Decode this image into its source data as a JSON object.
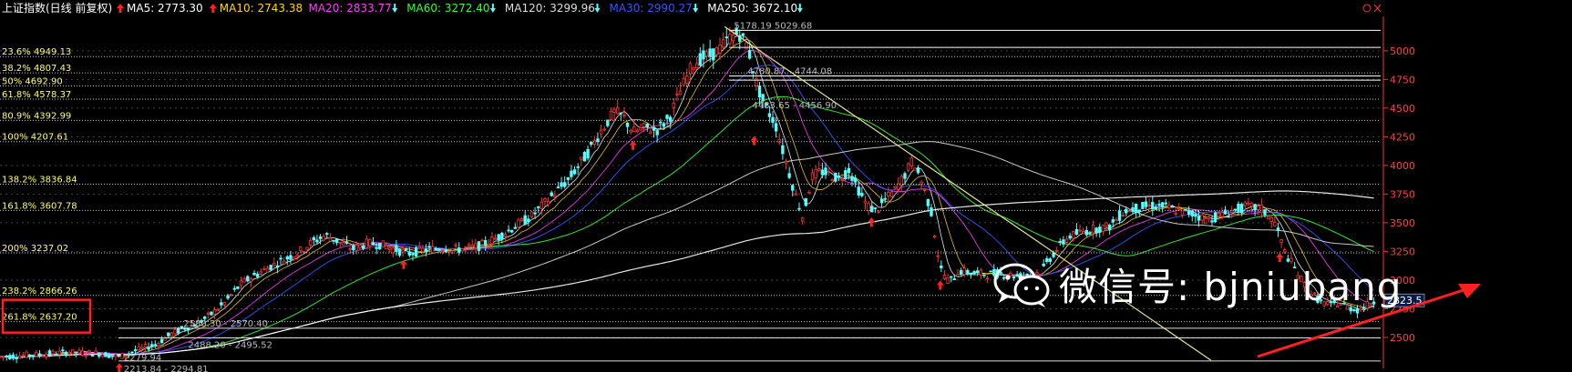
{
  "header": {
    "title": "上证指数(日线 前复权)",
    "ma": [
      {
        "text": "MA5: 2773.30",
        "arrow": "up",
        "color": "#ffffff"
      },
      {
        "text": "MA10: 2743.38",
        "arrow": "up",
        "color": "#ffd700"
      },
      {
        "text": "MA20: 2833.77",
        "arrow": "down",
        "color": "#ff3cff"
      },
      {
        "text": "MA60: 3272.40",
        "arrow": "down",
        "color": "#33ff33"
      },
      {
        "text": "MA120: 3299.96",
        "arrow": "down",
        "color": "#dddddd"
      },
      {
        "text": "MA30: 2990.27",
        "arrow": "down",
        "color": "#3355ff"
      },
      {
        "text": "MA250: 3672.10",
        "arrow": "down",
        "color": "#ffffff"
      }
    ]
  },
  "watermark": {
    "text": "微信号: bjniubang",
    "icon": "wechat-icon"
  },
  "colors": {
    "up": "#ff3232",
    "down": "#54ffff",
    "fib": "#ffff66",
    "grid": "#aaaaaa",
    "trend": "#e6e68c",
    "highlight": "#ff2020"
  },
  "chart_data": {
    "type": "candlestick",
    "series_name": "上证指数",
    "ylim": [
      2230,
      5300
    ],
    "y_ticks": [
      {
        "value": 5000,
        "label": "5000"
      },
      {
        "value": 4750,
        "label": "4750"
      },
      {
        "value": 4500,
        "label": "4500"
      },
      {
        "value": 4250,
        "label": "4250"
      },
      {
        "value": 4000,
        "label": "4000"
      },
      {
        "value": 3750,
        "label": "3750"
      },
      {
        "value": 3500,
        "label": "3500"
      },
      {
        "value": 3250,
        "label": "3250"
      },
      {
        "value": 3000,
        "label": "3000"
      },
      {
        "value": 2750,
        "label": "2750"
      },
      {
        "value": 2500,
        "label": "2500"
      }
    ],
    "current_price": {
      "value": 2823.5,
      "label": "2823.5"
    },
    "fib_levels": [
      {
        "label": "23.6% 4949.13",
        "value": 4949.13
      },
      {
        "label": "38.2% 4807.43",
        "value": 4807.43
      },
      {
        "label": "50% 4692.90",
        "value": 4692.9
      },
      {
        "label": "61.8% 4578.37",
        "value": 4578.37
      },
      {
        "label": "80.9% 4392.99",
        "value": 4392.99
      },
      {
        "label": "100% 4207.61",
        "value": 4207.61
      },
      {
        "label": "138.2% 3836.84",
        "value": 3836.84
      },
      {
        "label": "161.8% 3607.78",
        "value": 3607.78
      },
      {
        "label": "200% 3237.02",
        "value": 3237.02
      },
      {
        "label": "238.2% 2866.26",
        "value": 2866.26
      },
      {
        "label": "261.8% 2637.20",
        "value": 2637.2
      }
    ],
    "segment_annotations": [
      {
        "label": "5178.19 5029.68",
        "anchor": 5178.19
      },
      {
        "label": "4780.87 - 4744.08",
        "anchor": 4780.87
      },
      {
        "label": "4483.65 - 4456.90",
        "anchor": 4483.65
      },
      {
        "label": "2580.30 - 2570.40",
        "anchor": 2580.3
      },
      {
        "label": "2488.20 - 2495.52",
        "anchor": 2488.2
      },
      {
        "label": "2279.94",
        "anchor": 2279.94
      },
      {
        "label": "2213.84 - 2294.81",
        "anchor": 2294.81
      }
    ],
    "price_path": [
      [
        0,
        2330
      ],
      [
        40,
        2350
      ],
      [
        75,
        2370
      ],
      [
        110,
        2360
      ],
      [
        130,
        2330
      ],
      [
        150,
        2390
      ],
      [
        170,
        2440
      ],
      [
        185,
        2520
      ],
      [
        200,
        2580
      ],
      [
        215,
        2620
      ],
      [
        230,
        2700
      ],
      [
        245,
        2800
      ],
      [
        255,
        2900
      ],
      [
        265,
        2980
      ],
      [
        280,
        3050
      ],
      [
        295,
        3120
      ],
      [
        310,
        3180
      ],
      [
        325,
        3240
      ],
      [
        340,
        3330
      ],
      [
        355,
        3390
      ],
      [
        370,
        3330
      ],
      [
        385,
        3270
      ],
      [
        400,
        3320
      ],
      [
        415,
        3310
      ],
      [
        430,
        3270
      ],
      [
        445,
        3230
      ],
      [
        460,
        3260
      ],
      [
        480,
        3280
      ],
      [
        500,
        3270
      ],
      [
        520,
        3290
      ],
      [
        540,
        3360
      ],
      [
        560,
        3460
      ],
      [
        580,
        3560
      ],
      [
        600,
        3720
      ],
      [
        620,
        3880
      ],
      [
        640,
        4100
      ],
      [
        655,
        4300
      ],
      [
        670,
        4470
      ],
      [
        680,
        4420
      ],
      [
        690,
        4290
      ],
      [
        705,
        4330
      ],
      [
        715,
        4300
      ],
      [
        730,
        4420
      ],
      [
        740,
        4620
      ],
      [
        755,
        4880
      ],
      [
        765,
        4940
      ],
      [
        775,
        4960
      ],
      [
        785,
        5020
      ],
      [
        795,
        5110
      ],
      [
        805,
        5160
      ],
      [
        815,
        5040
      ],
      [
        825,
        4700
      ],
      [
        835,
        4500
      ],
      [
        845,
        4370
      ],
      [
        855,
        4080
      ],
      [
        865,
        3800
      ],
      [
        875,
        3550
      ],
      [
        885,
        3900
      ],
      [
        895,
        3950
      ],
      [
        905,
        3920
      ],
      [
        915,
        3880
      ],
      [
        925,
        3970
      ],
      [
        935,
        3800
      ],
      [
        945,
        3650
      ],
      [
        955,
        3600
      ],
      [
        965,
        3700
      ],
      [
        975,
        3780
      ],
      [
        985,
        3900
      ],
      [
        995,
        4050
      ],
      [
        1005,
        3850
      ],
      [
        1015,
        3600
      ],
      [
        1025,
        3100
      ],
      [
        1035,
        2980
      ],
      [
        1045,
        3080
      ],
      [
        1060,
        3060
      ],
      [
        1075,
        3050
      ],
      [
        1090,
        3060
      ],
      [
        1105,
        3040
      ],
      [
        1120,
        3030
      ],
      [
        1135,
        3080
      ],
      [
        1150,
        3250
      ],
      [
        1165,
        3380
      ],
      [
        1180,
        3420
      ],
      [
        1195,
        3450
      ],
      [
        1210,
        3470
      ],
      [
        1225,
        3600
      ],
      [
        1240,
        3630
      ],
      [
        1255,
        3650
      ],
      [
        1270,
        3640
      ],
      [
        1285,
        3600
      ],
      [
        1300,
        3580
      ],
      [
        1315,
        3530
      ],
      [
        1330,
        3560
      ],
      [
        1345,
        3610
      ],
      [
        1360,
        3640
      ],
      [
        1375,
        3620
      ],
      [
        1390,
        3500
      ],
      [
        1400,
        3250
      ],
      [
        1410,
        3120
      ],
      [
        1420,
        2980
      ],
      [
        1430,
        2880
      ],
      [
        1440,
        2810
      ],
      [
        1450,
        2780
      ],
      [
        1460,
        2800
      ],
      [
        1470,
        2760
      ],
      [
        1480,
        2740
      ],
      [
        1490,
        2780
      ],
      [
        1500,
        2823
      ]
    ]
  }
}
